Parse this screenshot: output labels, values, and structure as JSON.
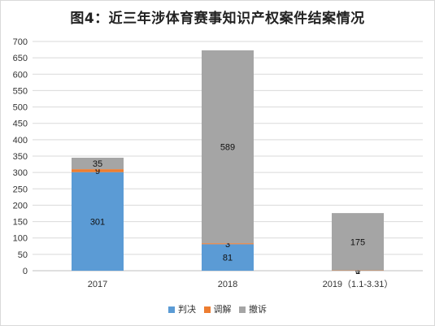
{
  "chart_data": {
    "type": "bar",
    "stacked": true,
    "title": "图4：近三年涉体育赛事知识产权案件结案情况",
    "categories": [
      "2017",
      "2018",
      "2019（1.1-3.31）"
    ],
    "series": [
      {
        "name": "判决",
        "color": "#5b9bd5",
        "values": [
          301,
          81,
          0
        ]
      },
      {
        "name": "调解",
        "color": "#ed7d31",
        "values": [
          9,
          3,
          1
        ]
      },
      {
        "name": "撤诉",
        "color": "#a5a5a5",
        "values": [
          35,
          589,
          175
        ]
      }
    ],
    "ylim": [
      0,
      700
    ],
    "yticks": [
      0,
      50,
      100,
      150,
      200,
      250,
      300,
      350,
      400,
      450,
      500,
      550,
      600,
      650,
      700
    ],
    "grid": true,
    "legend_position": "bottom"
  }
}
